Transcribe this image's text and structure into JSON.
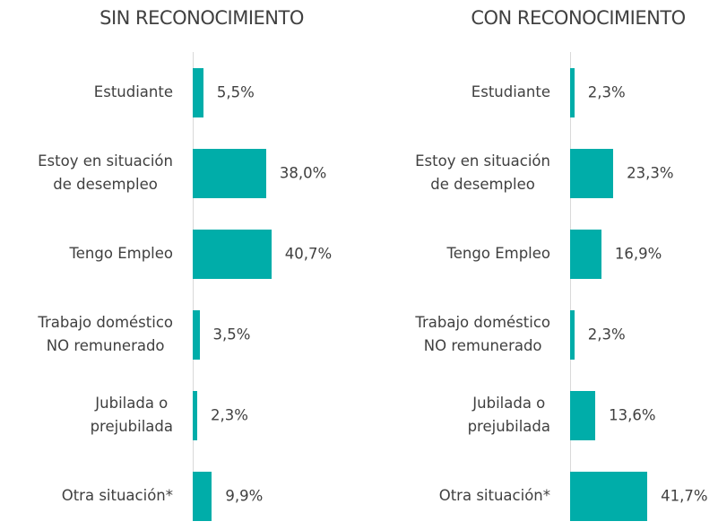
{
  "chart_data": [
    {
      "type": "bar",
      "orientation": "horizontal",
      "title": "SIN RECONOCIMIENTO",
      "categories": [
        "Estudiante",
        "Estoy en situación\nde desempleo",
        "Tengo Empleo",
        "Trabajo doméstico\nNO remunerado",
        "Jubilada o\nprejubilada",
        "Otra situación*"
      ],
      "values": [
        5.5,
        38.0,
        40.7,
        3.5,
        2.3,
        9.9
      ],
      "value_labels": [
        "5,5%",
        "38,0%",
        "40,7%",
        "3,5%",
        "2,3%",
        "9,9%"
      ],
      "color": "#00ada9",
      "xlim": [
        0,
        45
      ]
    },
    {
      "type": "bar",
      "orientation": "horizontal",
      "title": "CON RECONOCIMIENTO",
      "categories": [
        "Estudiante",
        "Estoy en situación\nde desempleo",
        "Tengo Empleo",
        "Trabajo doméstico\nNO remunerado",
        "Jubilada o\nprejubilada",
        "Otra situación*"
      ],
      "values": [
        2.3,
        23.3,
        16.9,
        2.3,
        13.6,
        41.7
      ],
      "value_labels": [
        "2,3%",
        "23,3%",
        "16,9%",
        "2,3%",
        "13,6%",
        "41,7%"
      ],
      "color": "#00ada9",
      "xlim": [
        0,
        45
      ]
    }
  ]
}
